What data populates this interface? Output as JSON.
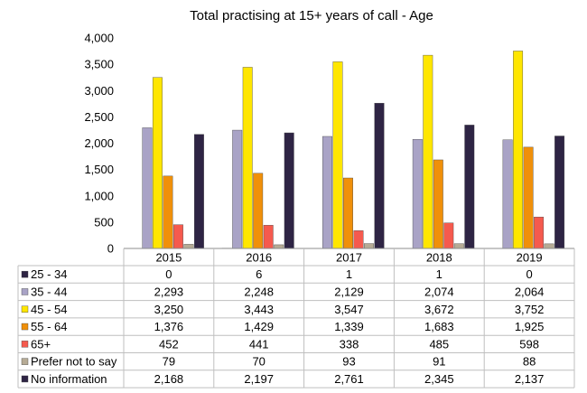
{
  "chart_data": {
    "type": "bar",
    "title": "Total practising at 15+ years of call - Age",
    "categories": [
      "2015",
      "2016",
      "2017",
      "2018",
      "2019"
    ],
    "ylim": [
      0,
      4000
    ],
    "yticks": [
      0,
      500,
      1000,
      1500,
      2000,
      2500,
      3000,
      3500,
      4000
    ],
    "ytick_labels": [
      "0",
      "500",
      "1,000",
      "1,500",
      "2,000",
      "2,500",
      "3,000",
      "3,500",
      "4,000"
    ],
    "grid": false,
    "legend": "data-table",
    "series": [
      {
        "name": "25 - 34",
        "color": "#2e2444",
        "values": [
          0,
          6,
          1,
          1,
          0
        ],
        "labels": [
          "0",
          "6",
          "1",
          "1",
          "0"
        ]
      },
      {
        "name": "35 - 44",
        "color": "#a9a3c6",
        "values": [
          2293,
          2248,
          2129,
          2074,
          2064
        ],
        "labels": [
          "2,293",
          "2,248",
          "2,129",
          "2,074",
          "2,064"
        ]
      },
      {
        "name": "45 - 54",
        "color": "#ffe600",
        "values": [
          3250,
          3443,
          3547,
          3672,
          3752
        ],
        "labels": [
          "3,250",
          "3,443",
          "3,547",
          "3,672",
          "3,752"
        ]
      },
      {
        "name": "55 - 64",
        "color": "#f0900a",
        "values": [
          1376,
          1429,
          1339,
          1683,
          1925
        ],
        "labels": [
          "1,376",
          "1,429",
          "1,339",
          "1,683",
          "1,925"
        ]
      },
      {
        "name": "65+",
        "color": "#f55a4e",
        "values": [
          452,
          441,
          338,
          485,
          598
        ],
        "labels": [
          "452",
          "441",
          "338",
          "485",
          "598"
        ]
      },
      {
        "name": "Prefer not to say",
        "color": "#b6ab95",
        "values": [
          79,
          70,
          93,
          91,
          88
        ],
        "labels": [
          "79",
          "70",
          "93",
          "91",
          "88"
        ]
      },
      {
        "name": "No information",
        "color": "#2e2444",
        "values": [
          2168,
          2197,
          2761,
          2345,
          2137
        ],
        "labels": [
          "2,168",
          "2,197",
          "2,761",
          "2,345",
          "2,137"
        ]
      }
    ]
  }
}
